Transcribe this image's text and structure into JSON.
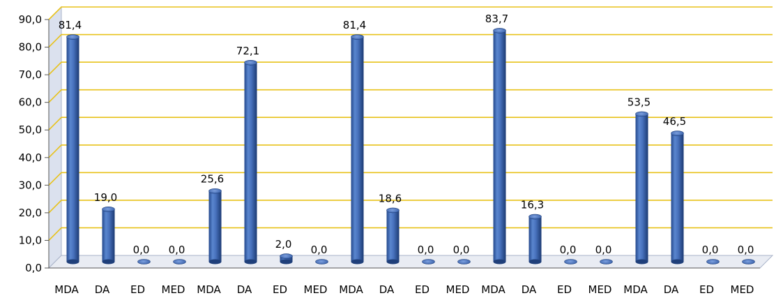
{
  "chart_data": {
    "type": "bar",
    "title": "",
    "xlabel": "",
    "ylabel": "",
    "ylim": [
      0,
      90
    ],
    "yticks": [
      "0,0",
      "10,0",
      "20,0",
      "30,0",
      "40,0",
      "50,0",
      "60,0",
      "70,0",
      "80,0",
      "90,0"
    ],
    "grid": true,
    "categories": [
      "MDA",
      "DA",
      "ED",
      "MED",
      "MDA",
      "DA",
      "ED",
      "MED",
      "MDA",
      "DA",
      "ED",
      "MED",
      "MDA",
      "DA",
      "ED",
      "MED",
      "MDA",
      "DA",
      "ED",
      "MED"
    ],
    "values": [
      81.4,
      19.0,
      0.0,
      0.0,
      25.6,
      72.1,
      2.0,
      0.0,
      81.4,
      18.6,
      0.0,
      0.0,
      83.7,
      16.3,
      0.0,
      0.0,
      53.5,
      46.5,
      0.0,
      0.0
    ],
    "value_labels": [
      "81,4",
      "19,0",
      "0,0",
      "0,0",
      "25,6",
      "72,1",
      "2,0",
      "0,0",
      "81,4",
      "18,6",
      "0,0",
      "0,0",
      "83,7",
      "16,3",
      "0,0",
      "0,0",
      "53,5",
      "46,5",
      "0,0",
      "0,0"
    ],
    "colors": {
      "bar": "#3f6cb5",
      "bar_dark": "#1f3f7a",
      "bar_light": "#8fb0e6",
      "grid": "#e8c21a",
      "wall_left": "#c9d2e6"
    }
  }
}
